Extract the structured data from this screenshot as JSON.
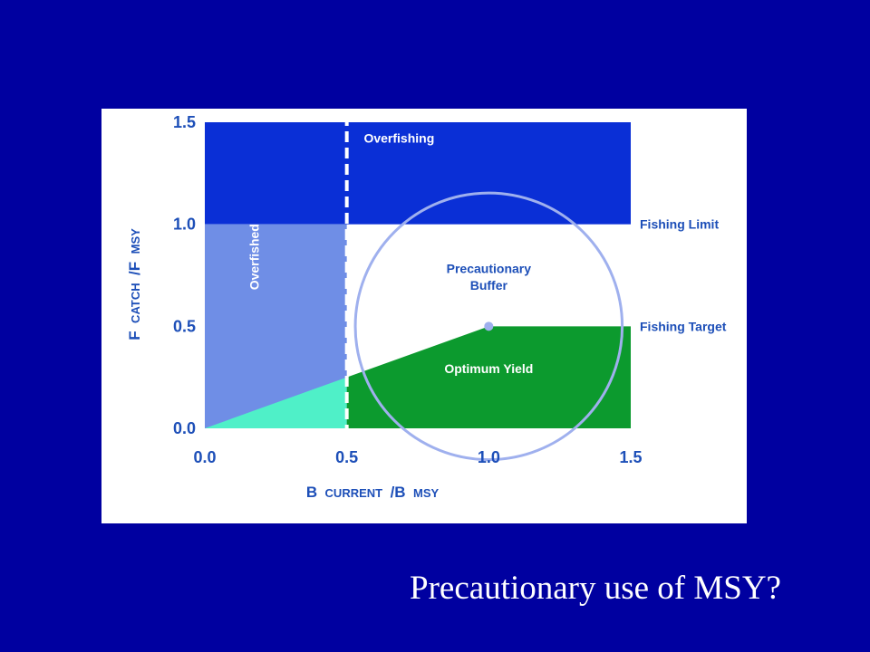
{
  "slide": {
    "background_color": "#0000a0",
    "caption": "Precautionary use of MSY?"
  },
  "diagram": {
    "x_axis": {
      "label_main": "B",
      "label_sub": "CURRENT",
      "label_sep": "/B",
      "label_sub2": "MSY",
      "ticks": [
        "0.0",
        "0.5",
        "1.0",
        "1.5"
      ],
      "range": [
        0,
        1.5
      ]
    },
    "y_axis": {
      "label_main": "F",
      "label_sub": "CATCH",
      "label_sep": "/F",
      "label_sub2": "MSY",
      "ticks": [
        "0.0",
        "0.5",
        "1.0",
        "1.5"
      ],
      "range": [
        0,
        1.5
      ]
    },
    "regions": {
      "overfishing": {
        "label": "Overfishing",
        "color": "#0a2fd6",
        "x": [
          0,
          1.5
        ],
        "y": [
          1.0,
          1.5
        ]
      },
      "overfished": {
        "label": "Overfished",
        "color": "#6f8ee6",
        "x": [
          0,
          0.5
        ],
        "y": [
          0,
          1.0
        ]
      },
      "rebuild": {
        "color": "#4ff0c8",
        "x": [
          0,
          0.5
        ],
        "y_at_x0": 0.0,
        "y_at_x05": 0.25
      },
      "optimum_yield": {
        "label": "Optimum Yield",
        "color": "#0c9a2e"
      }
    },
    "optimum_yield_boundary": [
      {
        "x": 0.5,
        "y": 0.25
      },
      {
        "x": 1.0,
        "y": 0.5
      },
      {
        "x": 1.5,
        "y": 0.5
      }
    ],
    "dashed_line_x": 0.5,
    "precautionary_buffer": {
      "label_line1": "Precautionary",
      "label_line2": "Buffer",
      "center": {
        "x": 1.0,
        "y": 0.5
      },
      "radius": 0.47,
      "color": "#9fb0ee"
    },
    "right_labels": {
      "fishing_limit": {
        "label": "Fishing Limit",
        "y": 1.0
      },
      "fishing_target": {
        "label": "Fishing Target",
        "y": 0.5
      }
    }
  }
}
